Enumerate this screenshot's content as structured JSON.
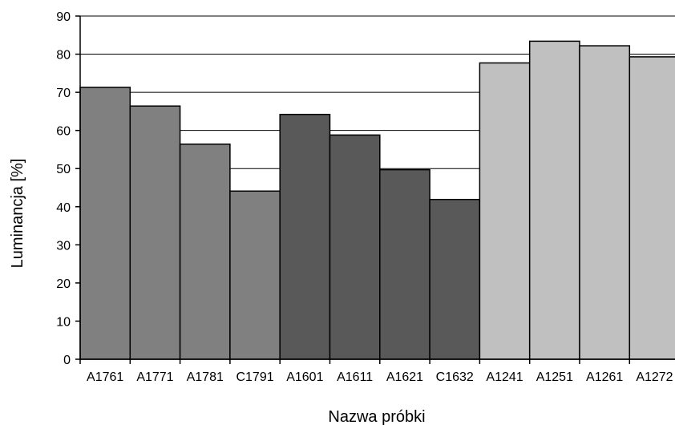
{
  "chart_data": {
    "type": "bar",
    "title": "",
    "xlabel": "Nazwa próbki",
    "ylabel": "Luminancja [%]",
    "ylim": [
      0,
      90
    ],
    "yticks": [
      "0",
      "10",
      "20",
      "30",
      "40",
      "50",
      "60",
      "70",
      "80",
      "90"
    ],
    "grid": "horizontal",
    "categories": [
      "A1761",
      "A1771",
      "A1781",
      "C1791",
      "A1601",
      "A1611",
      "A1621",
      "C1632",
      "A1241",
      "A1251",
      "A1261",
      "A1272"
    ],
    "values": [
      71.3,
      66.4,
      56.4,
      44.1,
      64.2,
      58.8,
      49.7,
      41.9,
      77.7,
      83.4,
      82.2,
      79.3
    ],
    "colors": [
      "#808080",
      "#808080",
      "#808080",
      "#808080",
      "#595959",
      "#595959",
      "#595959",
      "#595959",
      "#c0c0c0",
      "#c0c0c0",
      "#c0c0c0",
      "#c0c0c0"
    ]
  }
}
